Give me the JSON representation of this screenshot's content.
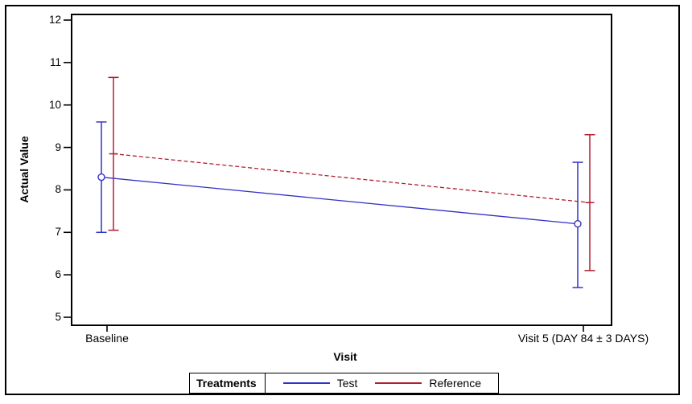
{
  "figure": {
    "y_axis": {
      "title": "Actual Value"
    },
    "x_axis": {
      "title": "Visit"
    },
    "legend": {
      "title": "Treatments"
    }
  },
  "chart_data": {
    "type": "line",
    "subtype": "mean-with-error-bars",
    "x": [
      "Baseline",
      "Visit 5 (DAY 84 ± 3 DAYS)"
    ],
    "xlabel": "Visit",
    "ylabel": "Actual Value",
    "ylim": [
      5,
      12
    ],
    "yticks": [
      5,
      6,
      7,
      8,
      9,
      10,
      11,
      12
    ],
    "grid": false,
    "legend_position": "bottom",
    "legend_title": "Treatments",
    "series": [
      {
        "name": "Test",
        "color": "#3232C8",
        "line_style": "solid",
        "marker": "open-circle",
        "means": [
          8.3,
          7.2
        ],
        "upper": [
          9.6,
          8.65
        ],
        "lower": [
          7.0,
          5.7
        ]
      },
      {
        "name": "Reference",
        "color": "#B01E32",
        "line_style": "dashed",
        "marker": "tick",
        "means": [
          8.85,
          7.7
        ],
        "upper": [
          10.65,
          9.3
        ],
        "lower": [
          7.05,
          6.1
        ]
      }
    ]
  }
}
